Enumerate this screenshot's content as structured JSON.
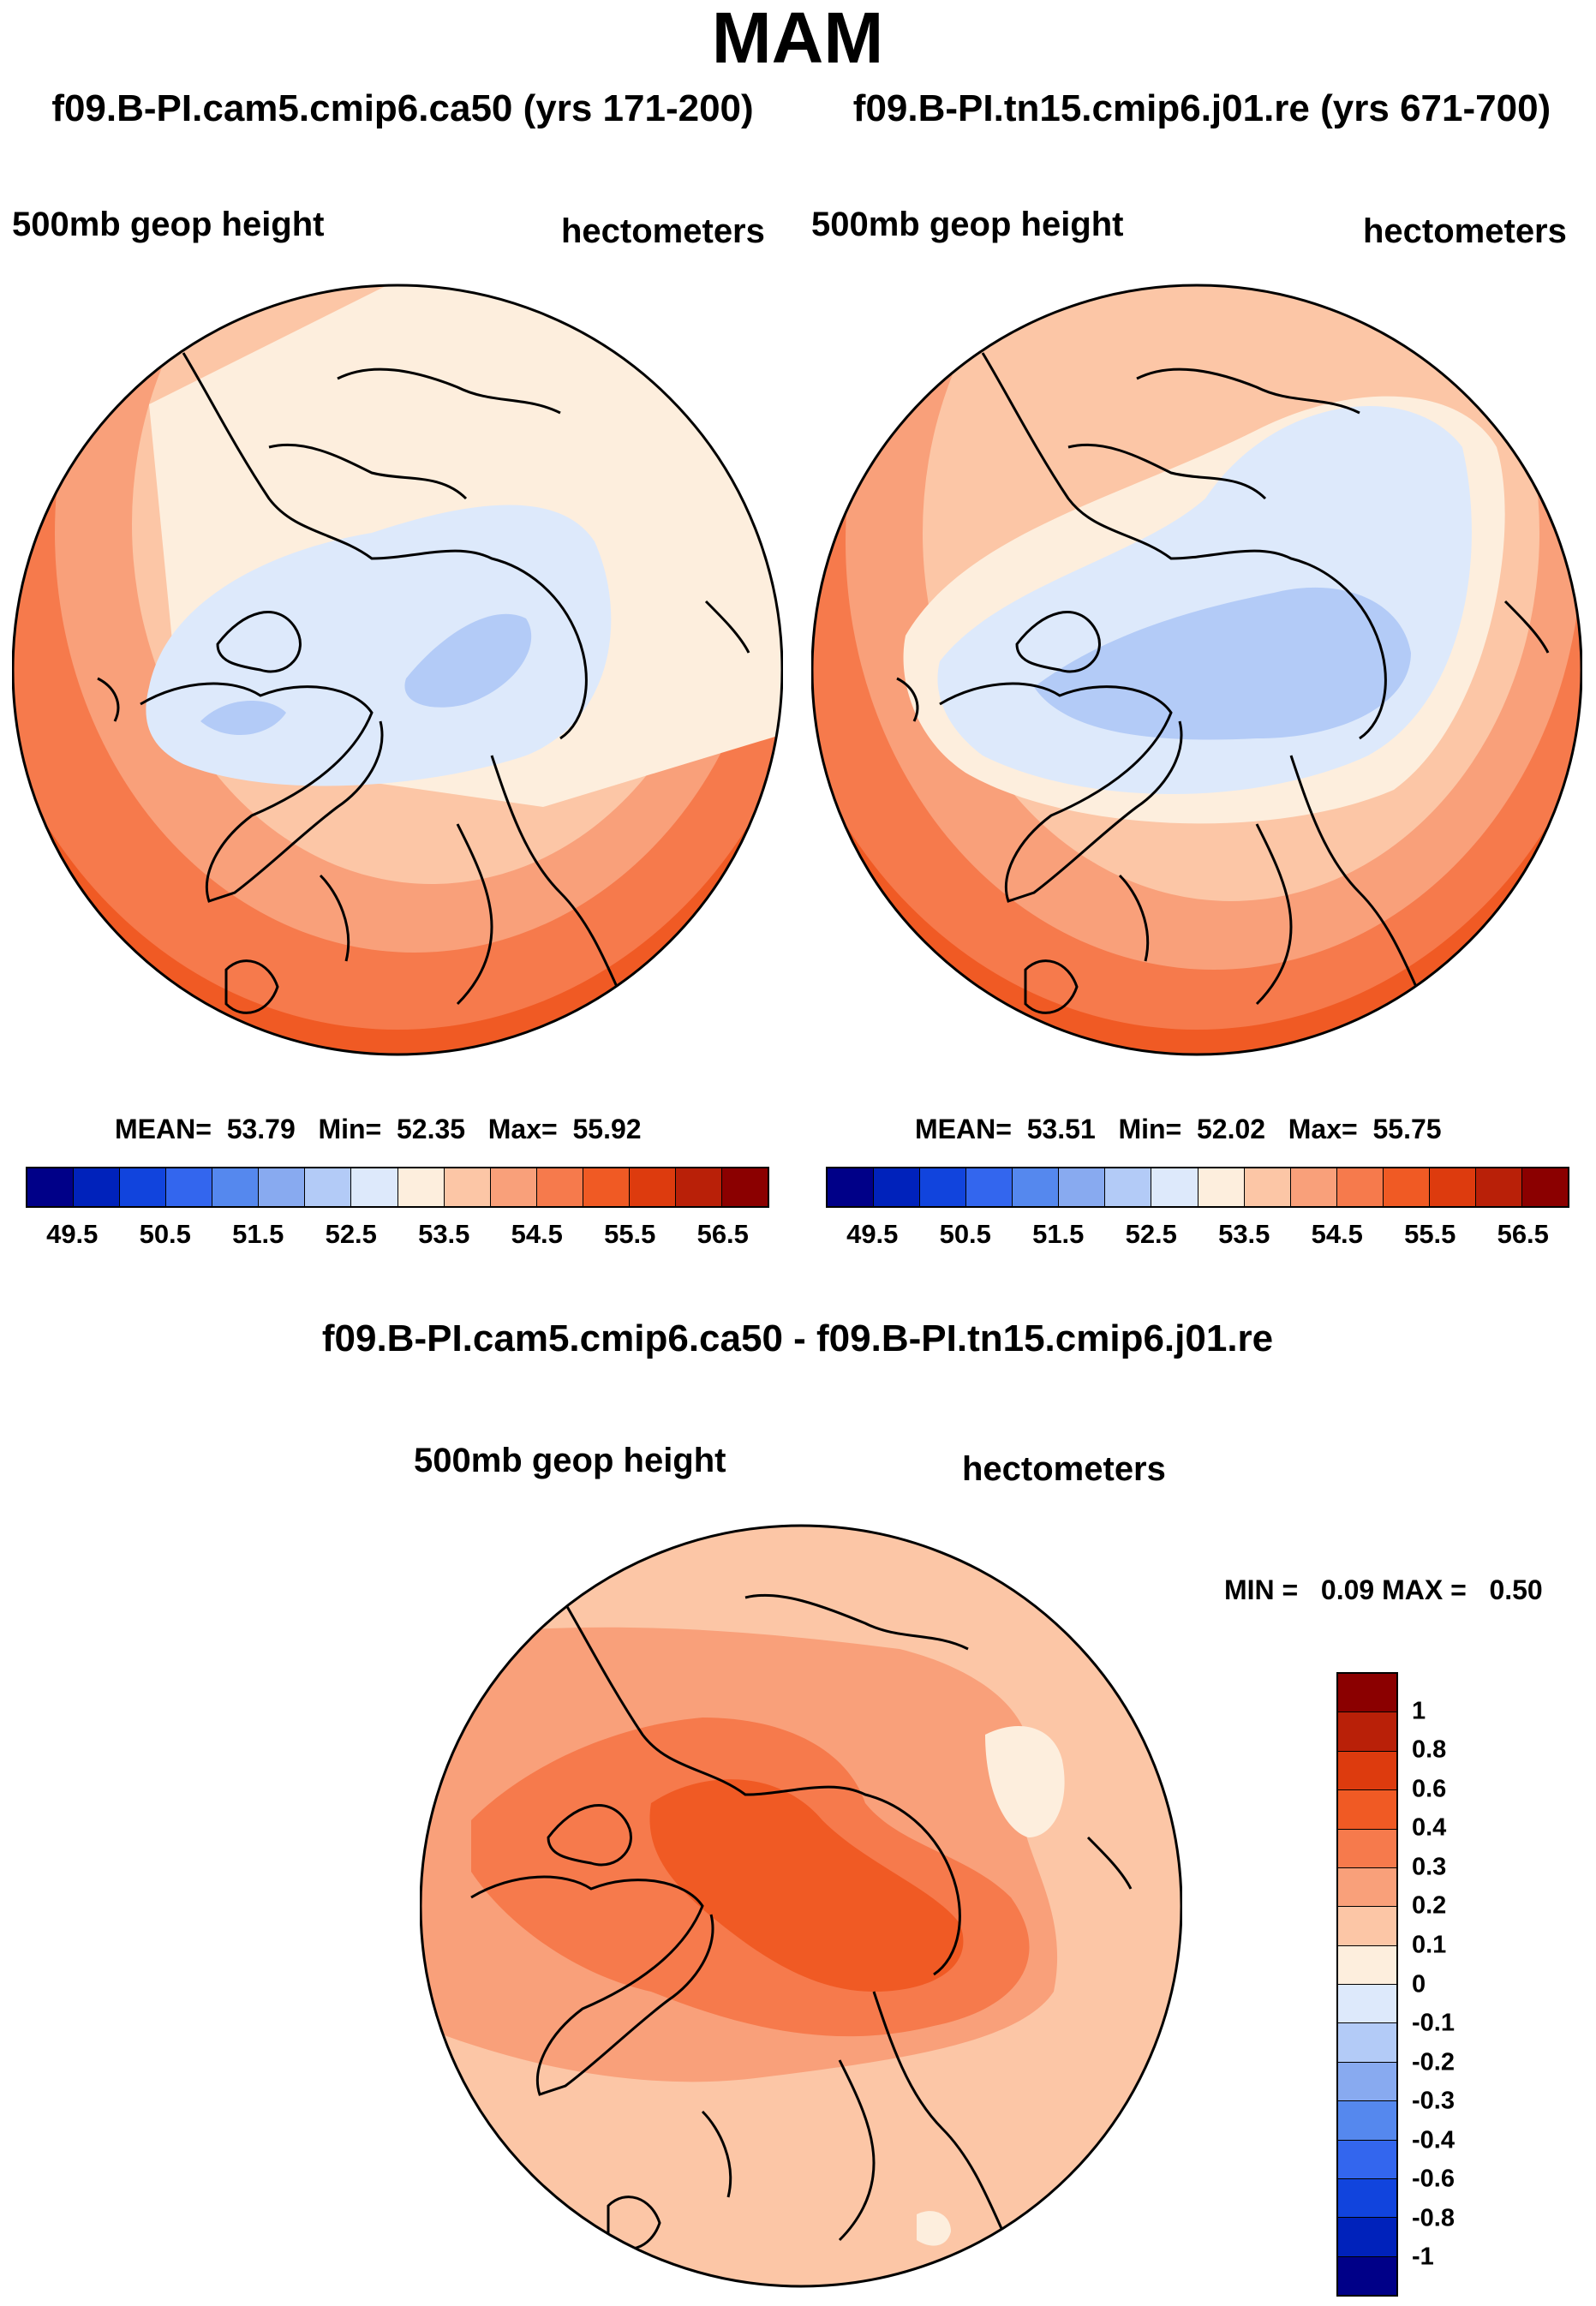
{
  "figure": {
    "season": "MAM",
    "var_title": "500mb geop height",
    "units": "hectometers",
    "diff_title": "f09.B-PI.cam5.cmip6.ca50 - f09.B-PI.tn15.cmip6.j01.re"
  },
  "panels": [
    {
      "title": "f09.B-PI.cam5.cmip6.ca50 (yrs 171-200)",
      "stats": {
        "mean_label": "MEAN=",
        "mean": "53.79",
        "min_label": "Min=",
        "min": "52.35",
        "max_label": "Max=",
        "max": "55.92"
      }
    },
    {
      "title": "f09.B-PI.tn15.cmip6.j01.re (yrs 671-700)",
      "stats": {
        "mean_label": "MEAN=",
        "mean": "53.51",
        "min_label": "Min=",
        "min": "52.02",
        "max_label": "Max=",
        "max": "55.75"
      }
    }
  ],
  "abs_colorbar": {
    "colors": [
      "#000088",
      "#0022bb",
      "#1144dd",
      "#3366ee",
      "#5588ee",
      "#88aaf0",
      "#b3cbf7",
      "#dde9fb",
      "#fdeedd",
      "#fcc6a6",
      "#f9a07a",
      "#f67a4c",
      "#f05a24",
      "#dd3b0e",
      "#b92008",
      "#8b0000"
    ],
    "tick_labels": [
      "49.5",
      "50.5",
      "51.5",
      "52.5",
      "53.5",
      "54.5",
      "55.5",
      "56.5"
    ],
    "tick_values": [
      49.5,
      50.5,
      51.5,
      52.5,
      53.5,
      54.5,
      55.5,
      56.5
    ]
  },
  "diff_colorbar": {
    "stats": {
      "min_label": "MIN =",
      "min": "0.09",
      "max_label": "MAX =",
      "max": "0.50"
    },
    "colors": [
      "#8b0000",
      "#b92008",
      "#dd3b0e",
      "#f05a24",
      "#f67a4c",
      "#f9a07a",
      "#fcc6a6",
      "#fdeedd",
      "#dde9fb",
      "#b3cbf7",
      "#88aaf0",
      "#5588ee",
      "#3366ee",
      "#1144dd",
      "#0022bb",
      "#000088"
    ],
    "tick_labels": [
      "1",
      "0.8",
      "0.6",
      "0.4",
      "0.3",
      "0.2",
      "0.1",
      "0",
      "-0.1",
      "-0.2",
      "-0.3",
      "-0.4",
      "-0.6",
      "-0.8",
      "-1"
    ]
  },
  "chart_data": [
    {
      "type": "heatmap",
      "title": "f09.B-PI.cam5.cmip6.ca50 (yrs 171-200)",
      "variable": "500mb geop height",
      "units": "hectometers",
      "projection": "north polar stereographic",
      "mean": 53.79,
      "min": 52.35,
      "max": 55.92,
      "levels": [
        49.5,
        50.0,
        50.5,
        51.0,
        51.5,
        52.0,
        52.5,
        53.0,
        53.5,
        54.0,
        54.5,
        55.0,
        55.5,
        56.0,
        56.5
      ]
    },
    {
      "type": "heatmap",
      "title": "f09.B-PI.tn15.cmip6.j01.re (yrs 671-700)",
      "variable": "500mb geop height",
      "units": "hectometers",
      "projection": "north polar stereographic",
      "mean": 53.51,
      "min": 52.02,
      "max": 55.75,
      "levels": [
        49.5,
        50.0,
        50.5,
        51.0,
        51.5,
        52.0,
        52.5,
        53.0,
        53.5,
        54.0,
        54.5,
        55.0,
        55.5,
        56.0,
        56.5
      ]
    },
    {
      "type": "heatmap",
      "title": "f09.B-PI.cam5.cmip6.ca50 - f09.B-PI.tn15.cmip6.j01.re",
      "variable": "500mb geop height",
      "units": "hectometers",
      "projection": "north polar stereographic",
      "min": 0.09,
      "max": 0.5,
      "levels": [
        -1,
        -0.8,
        -0.6,
        -0.4,
        -0.3,
        -0.2,
        -0.1,
        0,
        0.1,
        0.2,
        0.3,
        0.4,
        0.6,
        0.8,
        1
      ]
    }
  ]
}
